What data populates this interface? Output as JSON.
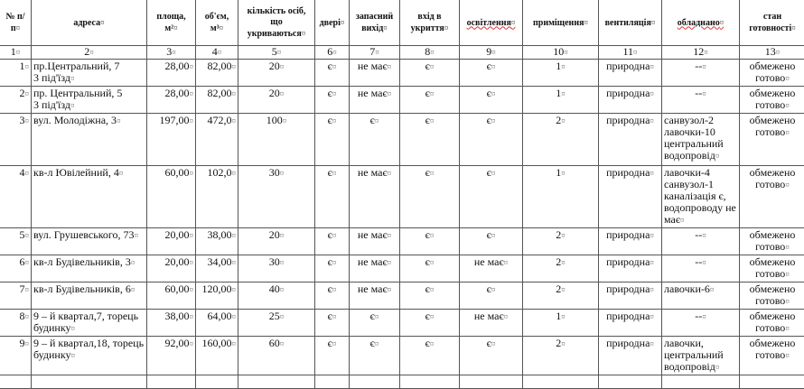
{
  "headers": [
    "№ п/п",
    "адреса",
    "площа, м²",
    "об'єм, м³",
    "кількість осіб, що укриваються",
    "двері",
    "запасний вихід",
    "вхід в укриття",
    "освітлення",
    "приміщення",
    "вентиляція",
    "обладнано",
    "стан готовності"
  ],
  "column_numbers": [
    "1",
    "2",
    "3",
    "4",
    "5",
    "6",
    "7",
    "8",
    "9",
    "10",
    "11",
    "12",
    "13"
  ],
  "rows": [
    [
      "1",
      "пр.Центральний, 7\n3 під'їзд",
      "28,00",
      "82,00",
      "20",
      "є",
      "не має",
      "є",
      "є",
      "1",
      "природна",
      "--",
      "обмежено готово"
    ],
    [
      "2",
      "пр. Центральний, 5\n3 під'їзд",
      "28,00",
      "82,00",
      "20",
      "є",
      "не має",
      "є",
      "є",
      "1",
      "природна",
      "--",
      "обмежено готово"
    ],
    [
      "3",
      "вул. Молодіжна, 3",
      "197,00",
      "472,0",
      "100",
      "є",
      "є",
      "є",
      "є",
      "2",
      "природна",
      "санвузол-2\nлавочки-10\nцентральний водопровід",
      "обмежено готово"
    ],
    [
      "4",
      "кв-л Ювілейний, 4",
      "60,00",
      "102,0",
      "30",
      "є",
      "не має",
      "є",
      "є",
      "1",
      "природна",
      "лавочки-4\nсанвузол-1\nканалізація є, водопроводу не має",
      "обмежено готово"
    ],
    [
      "5",
      "вул. Грушевського, 73",
      "20,00",
      "38,00",
      "20",
      "є",
      "не має",
      "є",
      "є",
      "2",
      "природна",
      "--",
      "обмежено готово"
    ],
    [
      "6",
      "кв-л Будівельників, 3",
      "20,00",
      "34,00",
      "30",
      "є",
      "не має",
      "є",
      "не має",
      "2",
      "природна",
      "--",
      "обмежено готово"
    ],
    [
      "7",
      "кв-л Будівельників, 6",
      "60,00",
      "120,00",
      "40",
      "є",
      "не має",
      "є",
      "є",
      "2",
      "природна",
      "лавочки-6",
      "обмежено готово"
    ],
    [
      "8",
      "9 – й квартал,7, торець будинку",
      "38,00",
      "64,00",
      "25",
      "є",
      "є",
      "є",
      "не має",
      "1",
      "природна",
      "--",
      "обмежено готово"
    ],
    [
      "9",
      "9 – й квартал,18, торець будинку",
      "92,00",
      "160,00",
      "60",
      "є",
      "є",
      "є",
      "є",
      "2",
      "природна",
      "лавочки, центральний водопровід",
      "обмежено готово"
    ]
  ],
  "spellcheck_underline_color": "#d33"
}
